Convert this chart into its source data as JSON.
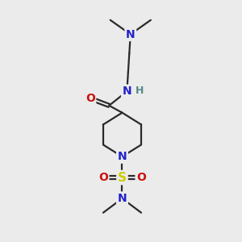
{
  "background_color": "#ebebeb",
  "atom_colors": {
    "N": "#2222cc",
    "O": "#cc1111",
    "S": "#cccc00",
    "H": "#558888"
  },
  "bond_color": "#2a2a2a",
  "bond_width": 1.6,
  "figsize": [
    3.0,
    3.0
  ],
  "dpi": 100,
  "xlim": [
    0,
    10
  ],
  "ylim": [
    0,
    10
  ]
}
